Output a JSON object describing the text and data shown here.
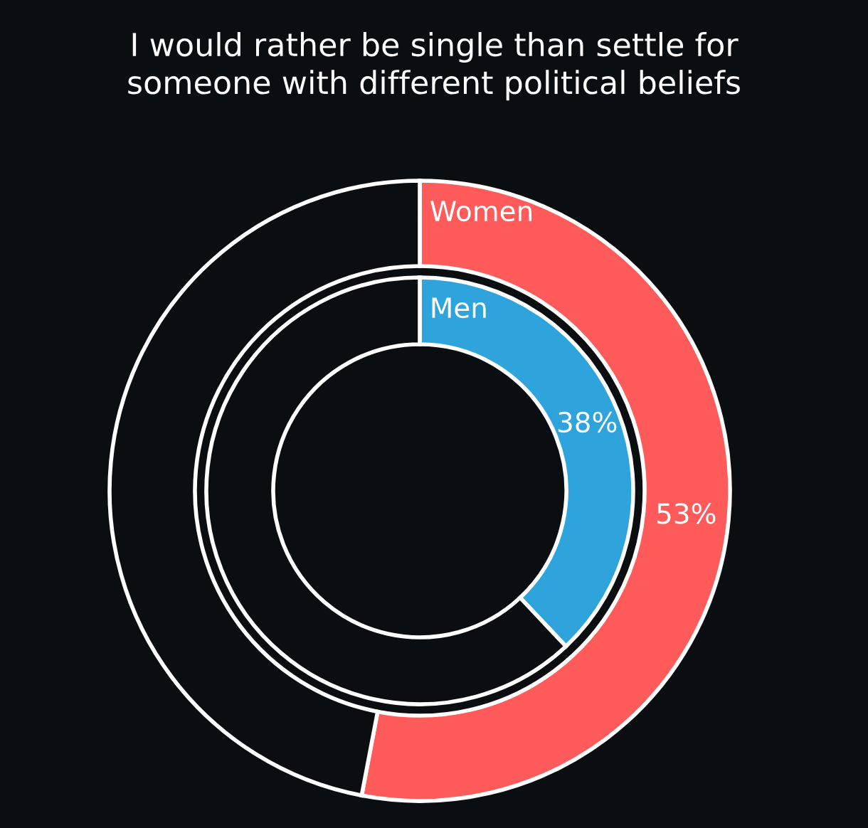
{
  "chart_data": {
    "type": "donut",
    "title": "I would rather be single than settle for\nsomeone with different political beliefs",
    "categories": [
      null,
      null
    ],
    "series": [
      {
        "name": "Women",
        "colors": [
          "#ff5b5b",
          "#0b0e10"
        ],
        "values": [
          53,
          47
        ],
        "value_labels": [
          "53%",
          null
        ]
      },
      {
        "name": "Men",
        "colors": [
          "#2fa4dc",
          "#0b0e10"
        ],
        "values": [
          38,
          62
        ],
        "value_labels": [
          "38%",
          null
        ]
      }
    ]
  }
}
